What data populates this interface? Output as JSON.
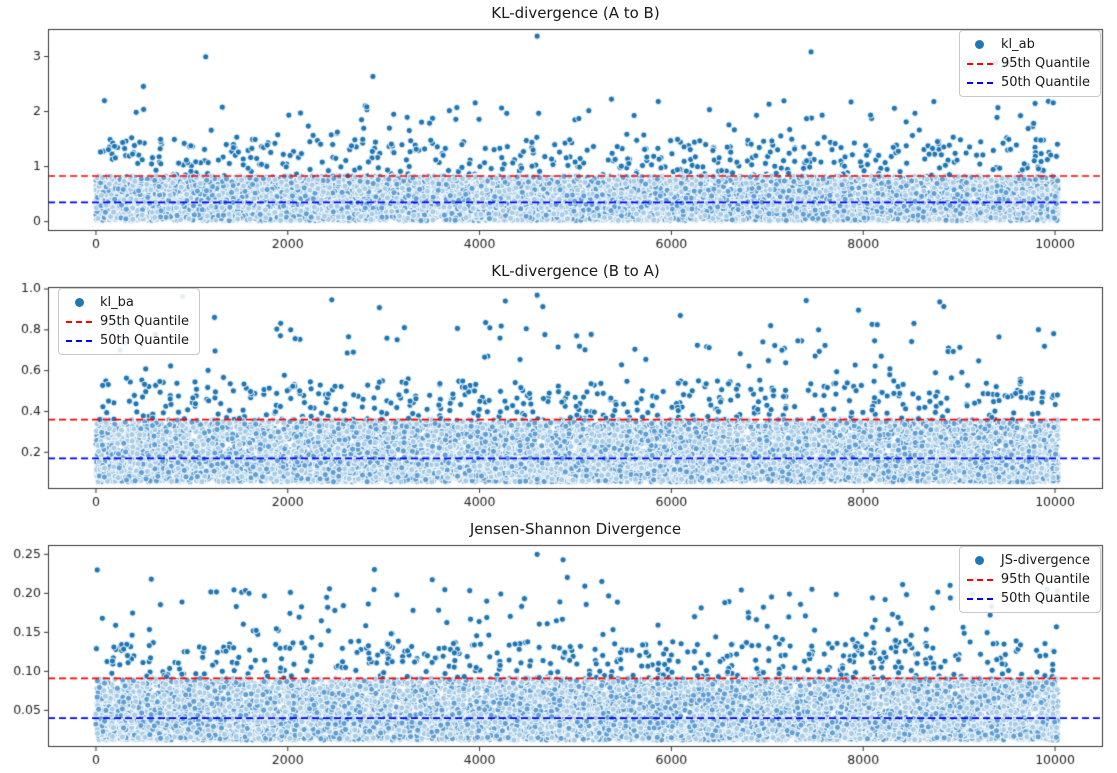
{
  "page": {
    "background": "#ffffff"
  },
  "colors": {
    "point": "#1f77b4",
    "point_mid": "#5f9fd3",
    "point_light": "#a8cce6",
    "point_edge": "#ffffff",
    "quantile_95": "#ff0000",
    "quantile_50": "#0000ff",
    "axis": "#333333",
    "text": "#262626"
  },
  "chart_data": [
    {
      "type": "scatter",
      "title": "KL-divergence (A to B)",
      "xlabel": "",
      "ylabel": "",
      "grid": false,
      "n_points": 10000,
      "x_range": [
        0,
        10000
      ],
      "xlim": [
        -500,
        10500
      ],
      "ylim": [
        -0.17,
        3.5
      ],
      "xticks": [
        0,
        2000,
        4000,
        6000,
        8000,
        10000
      ],
      "xtick_labels": [
        "0",
        "2000",
        "4000",
        "6000",
        "8000",
        "10000"
      ],
      "yticks": [
        0,
        1,
        2,
        3
      ],
      "ytick_labels": [
        "0",
        "1",
        "2",
        "3"
      ],
      "quantile_95": 0.83,
      "quantile_50": 0.35,
      "y_max": 3.37,
      "quantile_curve": [
        [
          0,
          0.02
        ],
        [
          0.5,
          0.35
        ],
        [
          0.95,
          0.83
        ],
        [
          0.99,
          1.5
        ],
        [
          0.999,
          2.2
        ],
        [
          1,
          3.37
        ]
      ],
      "legend": {
        "position": "top-right",
        "entries": [
          {
            "marker": "dot",
            "label": "kl_ab",
            "color": "#1f77b4"
          },
          {
            "marker": "dashed",
            "label": "95th Quantile",
            "color": "#ff0000"
          },
          {
            "marker": "dashed",
            "label": "50th Quantile",
            "color": "#0000ff"
          }
        ]
      }
    },
    {
      "type": "scatter",
      "title": "KL-divergence (B to A)",
      "xlabel": "",
      "ylabel": "",
      "grid": false,
      "n_points": 10000,
      "x_range": [
        0,
        10000
      ],
      "xlim": [
        -500,
        10500
      ],
      "ylim": [
        0.02,
        1.01
      ],
      "xticks": [
        0,
        2000,
        4000,
        6000,
        8000,
        10000
      ],
      "xtick_labels": [
        "0",
        "2000",
        "4000",
        "6000",
        "8000",
        "10000"
      ],
      "yticks": [
        0.2,
        0.4,
        0.6,
        0.8,
        1.0
      ],
      "ytick_labels": [
        "0.2",
        "0.4",
        "0.6",
        "0.8",
        "1.0"
      ],
      "quantile_95": 0.36,
      "quantile_50": 0.17,
      "y_max": 0.97,
      "quantile_curve": [
        [
          0,
          0.055
        ],
        [
          0.5,
          0.17
        ],
        [
          0.95,
          0.36
        ],
        [
          0.99,
          0.55
        ],
        [
          0.999,
          0.85
        ],
        [
          1,
          0.97
        ]
      ],
      "legend": {
        "position": "top-left",
        "entries": [
          {
            "marker": "dot",
            "label": "kl_ba",
            "color": "#1f77b4"
          },
          {
            "marker": "dashed",
            "label": "95th Quantile",
            "color": "#ff0000"
          },
          {
            "marker": "dashed",
            "label": "50th Quantile",
            "color": "#0000ff"
          }
        ]
      }
    },
    {
      "type": "scatter",
      "title": "Jensen-Shannon Divergence",
      "xlabel": "",
      "ylabel": "",
      "grid": false,
      "n_points": 10000,
      "x_range": [
        0,
        10000
      ],
      "xlim": [
        -500,
        10500
      ],
      "ylim": [
        0.003,
        0.262
      ],
      "xticks": [
        0,
        2000,
        4000,
        6000,
        8000,
        10000
      ],
      "xtick_labels": [
        "0",
        "2000",
        "4000",
        "6000",
        "8000",
        "10000"
      ],
      "yticks": [
        0.05,
        0.1,
        0.15,
        0.2,
        0.25
      ],
      "ytick_labels": [
        "0.05",
        "0.10",
        "0.15",
        "0.20",
        "0.25"
      ],
      "quantile_95": 0.091,
      "quantile_50": 0.04,
      "y_max": 0.25,
      "quantile_curve": [
        [
          0,
          0.012
        ],
        [
          0.5,
          0.04
        ],
        [
          0.95,
          0.091
        ],
        [
          0.99,
          0.14
        ],
        [
          0.999,
          0.21
        ],
        [
          1,
          0.25
        ]
      ],
      "legend": {
        "position": "top-right",
        "entries": [
          {
            "marker": "dot",
            "label": "JS-divergence",
            "color": "#1f77b4"
          },
          {
            "marker": "dashed",
            "label": "95th Quantile",
            "color": "#ff0000"
          },
          {
            "marker": "dashed",
            "label": "50th Quantile",
            "color": "#0000ff"
          }
        ]
      }
    }
  ]
}
